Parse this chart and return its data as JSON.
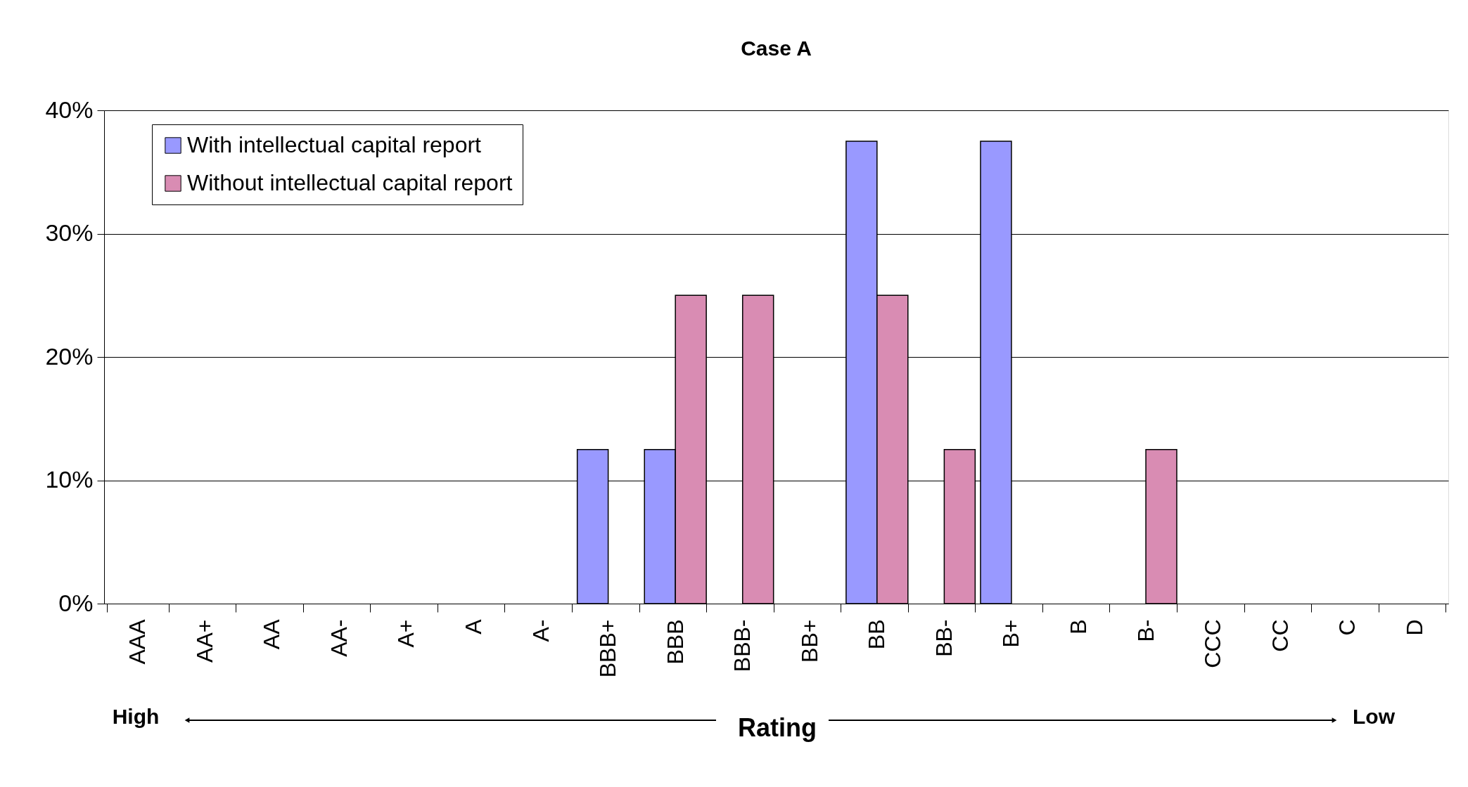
{
  "chart_data": {
    "type": "bar",
    "title": "Case A",
    "xlabel": "Rating",
    "annotations": [
      "High",
      "Low"
    ],
    "categories": [
      "AAA",
      "AA+",
      "AA",
      "AA-",
      "A+",
      "A",
      "A-",
      "BBB+",
      "BBB",
      "BBB-",
      "BB+",
      "BB",
      "BB-",
      "B+",
      "B",
      "B-",
      "CCC",
      "CC",
      "C",
      "D"
    ],
    "series": [
      {
        "name": "With intellectual capital report",
        "color": "#9999ff",
        "values": [
          0,
          0,
          0,
          0,
          0,
          0,
          0,
          12.5,
          12.5,
          0,
          0,
          37.5,
          0,
          37.5,
          0,
          0,
          0,
          0,
          0,
          0
        ]
      },
      {
        "name": "Without intellectual capital report",
        "color": "#d98cb3",
        "values": [
          0,
          0,
          0,
          0,
          0,
          0,
          0,
          0,
          25,
          25,
          0,
          25,
          12.5,
          0,
          0,
          12.5,
          0,
          0,
          0,
          0
        ]
      }
    ],
    "ylim": [
      0,
      40
    ],
    "yticks": [
      {
        "value": 0,
        "label": "0%"
      },
      {
        "value": 10,
        "label": "10%"
      },
      {
        "value": 20,
        "label": "20%"
      },
      {
        "value": 30,
        "label": "30%"
      },
      {
        "value": 40,
        "label": "40%"
      }
    ],
    "grid": "y",
    "legend": "top left"
  }
}
